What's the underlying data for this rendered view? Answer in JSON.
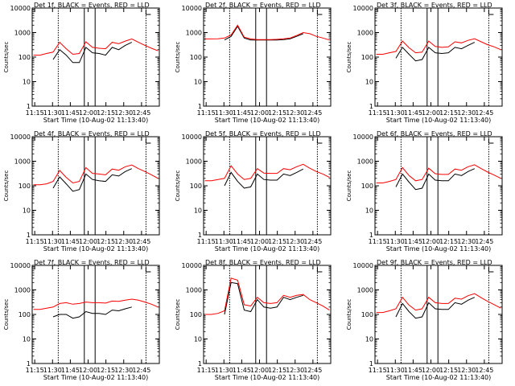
{
  "common": {
    "xlabel": "Start Time (10-Aug-02 11:13:40)",
    "ylabel": "Counts/sec",
    "xticks": [
      "11:15",
      "11:30",
      "11:45",
      "12:00",
      "12:15",
      "12:30",
      "12:45"
    ],
    "yticks": [
      "1",
      "10",
      "100",
      "1000",
      "10000"
    ],
    "colors": {
      "events": "#000000",
      "lld": "#ff0000"
    }
  },
  "chart_data": [
    {
      "type": "line",
      "title": "Det 1f, BLACK = Events, RED = LLD",
      "xlabel": "Start Time (10-Aug-02 11:13:40)",
      "ylabel": "Counts/sec",
      "ylog": true,
      "ylim": [
        1,
        10000
      ],
      "x": [
        "11:15",
        "11:20",
        "11:25",
        "11:30",
        "11:35",
        "11:40",
        "11:45",
        "11:50",
        "11:55",
        "12:00",
        "12:05",
        "12:10",
        "12:15",
        "12:20",
        "12:25",
        "12:30",
        "12:35",
        "12:40",
        "12:45",
        "12:50"
      ],
      "series": [
        {
          "name": "Events",
          "values": [
            null,
            null,
            null,
            80,
            200,
            120,
            60,
            60,
            250,
            150,
            140,
            120,
            250,
            200,
            300,
            400,
            null,
            null,
            null,
            null
          ]
        },
        {
          "name": "LLD",
          "values": [
            120,
            120,
            140,
            160,
            400,
            220,
            130,
            140,
            420,
            250,
            230,
            220,
            400,
            350,
            450,
            550,
            400,
            300,
            230,
            180
          ]
        }
      ]
    },
    {
      "type": "line",
      "title": "Det 2f, BLACK = Events, RED = LLD",
      "xlabel": "Start Time (10-Aug-02 11:13:40)",
      "ylabel": "Counts/sec",
      "ylog": true,
      "ylim": [
        1,
        10000
      ],
      "x": [
        "11:15",
        "11:20",
        "11:25",
        "11:30",
        "11:35",
        "11:40",
        "11:45",
        "11:50",
        "11:55",
        "12:00",
        "12:05",
        "12:10",
        "12:15",
        "12:20",
        "12:25",
        "12:30",
        "12:35",
        "12:40",
        "12:45",
        "12:50"
      ],
      "series": [
        {
          "name": "Events",
          "values": [
            null,
            null,
            null,
            500,
            700,
            1800,
            600,
            500,
            500,
            500,
            500,
            500,
            520,
            560,
            700,
            900,
            null,
            null,
            null,
            null
          ]
        },
        {
          "name": "LLD",
          "values": [
            550,
            550,
            560,
            600,
            800,
            2000,
            650,
            550,
            520,
            520,
            520,
            530,
            560,
            600,
            760,
            1000,
            900,
            700,
            600,
            500
          ]
        }
      ]
    },
    {
      "type": "line",
      "title": "Det 3f, BLACK = Events, RED = LLD",
      "xlabel": "Start Time (10-Aug-02 11:13:40)",
      "ylabel": "Counts/sec",
      "ylog": true,
      "ylim": [
        1,
        10000
      ],
      "x": [
        "11:15",
        "11:20",
        "11:25",
        "11:30",
        "11:35",
        "11:40",
        "11:45",
        "11:50",
        "11:55",
        "12:00",
        "12:05",
        "12:10",
        "12:15",
        "12:20",
        "12:25",
        "12:30",
        "12:35",
        "12:40",
        "12:45",
        "12:50"
      ],
      "series": [
        {
          "name": "Events",
          "values": [
            null,
            null,
            null,
            90,
            250,
            130,
            70,
            80,
            250,
            150,
            140,
            150,
            250,
            220,
            300,
            400,
            null,
            null,
            null,
            null
          ]
        },
        {
          "name": "LLD",
          "values": [
            130,
            130,
            150,
            170,
            450,
            240,
            150,
            160,
            450,
            270,
            250,
            260,
            420,
            380,
            480,
            560,
            420,
            320,
            260,
            200
          ]
        }
      ]
    },
    {
      "type": "line",
      "title": "Det 4f, BLACK = Events, RED = LLD",
      "xlabel": "Start Time (10-Aug-02 11:13:40)",
      "ylabel": "Counts/sec",
      "ylog": true,
      "ylim": [
        1,
        10000
      ],
      "x": [
        "11:15",
        "11:20",
        "11:25",
        "11:30",
        "11:35",
        "11:40",
        "11:45",
        "11:50",
        "11:55",
        "12:00",
        "12:05",
        "12:10",
        "12:15",
        "12:20",
        "12:25",
        "12:30",
        "12:35",
        "12:40",
        "12:45",
        "12:50"
      ],
      "series": [
        {
          "name": "Events",
          "values": [
            null,
            null,
            null,
            80,
            230,
            120,
            60,
            70,
            300,
            180,
            160,
            150,
            280,
            250,
            380,
            500,
            null,
            null,
            null,
            null
          ]
        },
        {
          "name": "LLD",
          "values": [
            110,
            110,
            120,
            150,
            420,
            220,
            130,
            150,
            550,
            320,
            300,
            280,
            480,
            430,
            600,
            700,
            500,
            380,
            280,
            200
          ]
        }
      ]
    },
    {
      "type": "line",
      "title": "Det 5f, BLACK = Events, RED = LLD",
      "xlabel": "Start Time (10-Aug-02 11:13:40)",
      "ylabel": "Counts/sec",
      "ylog": true,
      "ylim": [
        1,
        10000
      ],
      "x": [
        "11:15",
        "11:20",
        "11:25",
        "11:30",
        "11:35",
        "11:40",
        "11:45",
        "11:50",
        "11:55",
        "12:00",
        "12:05",
        "12:10",
        "12:15",
        "12:20",
        "12:25",
        "12:30",
        "12:35",
        "12:40",
        "12:45",
        "12:50"
      ],
      "series": [
        {
          "name": "Events",
          "values": [
            null,
            null,
            null,
            100,
            350,
            150,
            80,
            90,
            300,
            180,
            170,
            170,
            300,
            260,
            350,
            480,
            null,
            null,
            null,
            null
          ]
        },
        {
          "name": "LLD",
          "values": [
            160,
            160,
            180,
            200,
            650,
            300,
            180,
            200,
            500,
            330,
            320,
            320,
            500,
            450,
            600,
            750,
            520,
            380,
            300,
            220
          ]
        }
      ]
    },
    {
      "type": "line",
      "title": "Det 6f, BLACK = Events, RED = LLD",
      "xlabel": "Start Time (10-Aug-02 11:13:40)",
      "ylabel": "Counts/sec",
      "ylog": true,
      "ylim": [
        1,
        10000
      ],
      "x": [
        "11:15",
        "11:20",
        "11:25",
        "11:30",
        "11:35",
        "11:40",
        "11:45",
        "11:50",
        "11:55",
        "12:00",
        "12:05",
        "12:10",
        "12:15",
        "12:20",
        "12:25",
        "12:30",
        "12:35",
        "12:40",
        "12:45",
        "12:50"
      ],
      "series": [
        {
          "name": "Events",
          "values": [
            null,
            null,
            null,
            90,
            300,
            140,
            70,
            80,
            300,
            170,
            160,
            160,
            300,
            260,
            380,
            500,
            null,
            null,
            null,
            null
          ]
        },
        {
          "name": "LLD",
          "values": [
            130,
            130,
            150,
            180,
            550,
            260,
            160,
            180,
            520,
            310,
            290,
            290,
            480,
            430,
            600,
            720,
            500,
            360,
            270,
            200
          ]
        }
      ]
    },
    {
      "type": "line",
      "title": "Det 7f, BLACK = Events, RED = LLD",
      "xlabel": "Start Time (10-Aug-02 11:13:40)",
      "ylabel": "Counts/sec",
      "ylog": true,
      "ylim": [
        1,
        10000
      ],
      "x": [
        "11:15",
        "11:20",
        "11:25",
        "11:30",
        "11:35",
        "11:40",
        "11:45",
        "11:50",
        "11:55",
        "12:00",
        "12:05",
        "12:10",
        "12:15",
        "12:20",
        "12:25",
        "12:30",
        "12:35",
        "12:40",
        "12:45",
        "12:50"
      ],
      "series": [
        {
          "name": "Events",
          "values": [
            null,
            null,
            null,
            80,
            100,
            100,
            70,
            80,
            130,
            110,
            110,
            100,
            150,
            140,
            170,
            200,
            null,
            null,
            null,
            null
          ]
        },
        {
          "name": "LLD",
          "values": [
            160,
            160,
            180,
            200,
            280,
            300,
            260,
            280,
            320,
            300,
            300,
            290,
            350,
            340,
            380,
            420,
            380,
            320,
            260,
            200
          ]
        }
      ]
    },
    {
      "type": "line",
      "title": "Det 8f, BLACK = Events, RED = LLD",
      "xlabel": "Start Time (10-Aug-02 11:13:40)",
      "ylabel": "Counts/sec",
      "ylog": true,
      "ylim": [
        1,
        10000
      ],
      "x": [
        "11:15",
        "11:20",
        "11:25",
        "11:30",
        "11:35",
        "11:40",
        "11:45",
        "11:50",
        "11:55",
        "12:00",
        "12:05",
        "12:10",
        "12:15",
        "12:20",
        "12:25",
        "12:30",
        "12:35",
        "12:40",
        "12:45",
        "12:50"
      ],
      "series": [
        {
          "name": "Events",
          "values": [
            null,
            null,
            null,
            100,
            2000,
            1800,
            150,
            130,
            400,
            200,
            180,
            200,
            500,
            400,
            500,
            600,
            null,
            null,
            null,
            null
          ]
        },
        {
          "name": "LLD",
          "values": [
            100,
            100,
            110,
            140,
            3000,
            2500,
            250,
            220,
            500,
            300,
            280,
            300,
            600,
            500,
            600,
            650,
            400,
            300,
            220,
            150
          ]
        }
      ]
    },
    {
      "type": "line",
      "title": "Det 9f, BLACK = Events, RED = LLD",
      "xlabel": "Start Time (10-Aug-02 11:13:40)",
      "ylabel": "Counts/sec",
      "ylog": true,
      "ylim": [
        1,
        10000
      ],
      "x": [
        "11:15",
        "11:20",
        "11:25",
        "11:30",
        "11:35",
        "11:40",
        "11:45",
        "11:50",
        "11:55",
        "12:00",
        "12:05",
        "12:10",
        "12:15",
        "12:20",
        "12:25",
        "12:30",
        "12:35",
        "12:40",
        "12:45",
        "12:50"
      ],
      "series": [
        {
          "name": "Events",
          "values": [
            null,
            null,
            null,
            80,
            280,
            130,
            70,
            80,
            300,
            170,
            160,
            160,
            300,
            260,
            380,
            500,
            null,
            null,
            null,
            null
          ]
        },
        {
          "name": "LLD",
          "values": [
            120,
            120,
            140,
            170,
            500,
            240,
            150,
            170,
            500,
            300,
            280,
            280,
            460,
            420,
            580,
            700,
            480,
            340,
            250,
            180
          ]
        }
      ]
    }
  ]
}
